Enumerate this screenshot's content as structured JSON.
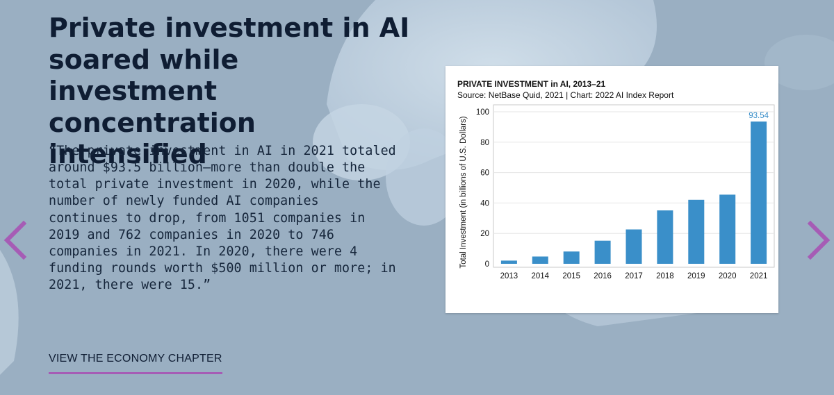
{
  "hero": {
    "title_lines": [
      "Private investment in AI",
      "soared while investment",
      "concentration intensified"
    ],
    "quote_lines": [
      "“The private investment in AI in 2021 totaled",
      "around $93.5 billion—more than double the",
      "total private investment in 2020, while the",
      "number of newly funded AI companies",
      "continues to drop, from 1051 companies in",
      "2019 and 762 companies in 2020 to 746",
      "companies in 2021. In 2020, there were 4",
      "funding rounds worth $500 million or more; in",
      "2021, there were 15.”"
    ],
    "cta_label": "VIEW THE ECONOMY CHAPTER"
  },
  "nav": {
    "prev_icon": "chevron-left-icon",
    "next_icon": "chevron-right-icon",
    "arrow_color": "#a65cb5"
  },
  "colors": {
    "background": "#9aafc2",
    "title": "#0f1d33",
    "accent": "#a65cb5",
    "bar": "#3a8fc9",
    "value_label": "#3a8fc9"
  },
  "chart_data": {
    "type": "bar",
    "title": "PRIVATE INVESTMENT in AI, 2013–21",
    "subtitle": "Source: NetBase Quid, 2021 | Chart: 2022 AI Index Report",
    "xlabel": "",
    "ylabel": "Total Investment (in billions of U.S. Dollars)",
    "categories": [
      "2013",
      "2014",
      "2015",
      "2016",
      "2017",
      "2018",
      "2019",
      "2020",
      "2021"
    ],
    "values": [
      2.1,
      4.8,
      8.1,
      15.2,
      22.6,
      35.1,
      42.1,
      45.5,
      93.54
    ],
    "value_labels": [
      "",
      "",
      "",
      "",
      "",
      "",
      "",
      "",
      "93.54"
    ],
    "ylim": [
      0,
      100
    ],
    "yticks": [
      0,
      20,
      40,
      60,
      80,
      100
    ],
    "grid": true,
    "legend": "none"
  }
}
